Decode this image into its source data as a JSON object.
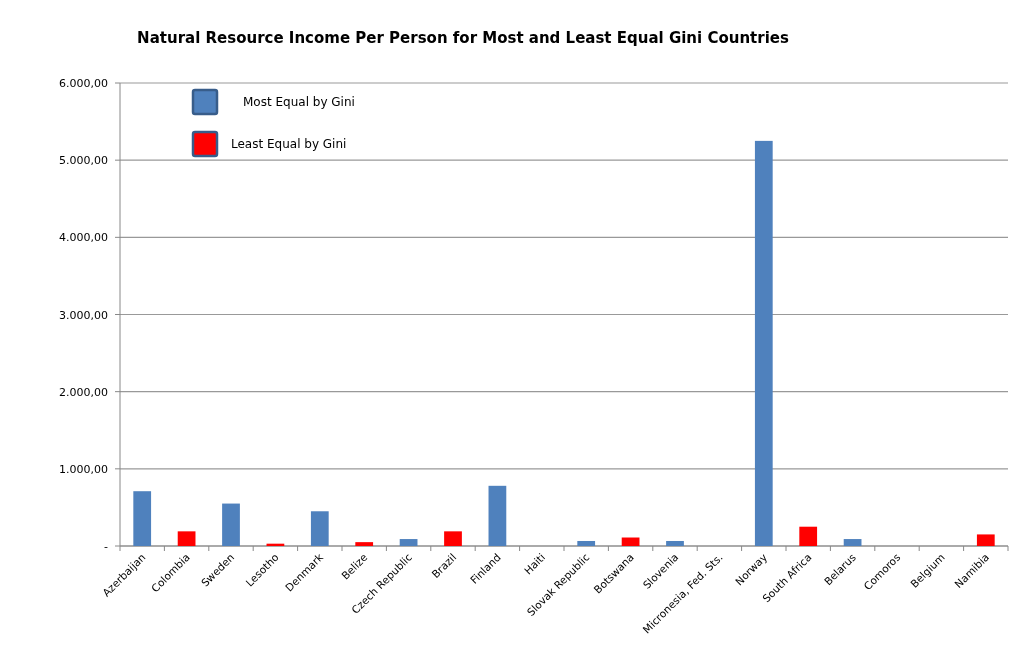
{
  "chart_data": {
    "type": "bar",
    "title": "Natural Resource Income Per Person for Most and Least Equal Gini Countries",
    "categories": [
      "Azerbaijan",
      "Colombia",
      "Sweden",
      "Lesotho",
      "Denmark",
      "Belize",
      "Czech Republic",
      "Brazil",
      "Finland",
      "Haiti",
      "Slovak Republic",
      "Botswana",
      "Slovenia",
      "Micronesia, Fed. Sts.",
      "Norway",
      "South Africa",
      "Belarus",
      "Comoros",
      "Belgium",
      "Namibia"
    ],
    "series": [
      {
        "name": "Most Equal by Gini",
        "color": "#4f81bd",
        "values": [
          710,
          null,
          550,
          null,
          450,
          null,
          90,
          null,
          780,
          null,
          65,
          null,
          65,
          null,
          5250,
          null,
          90,
          null,
          0,
          null
        ]
      },
      {
        "name": "Least Equal by Gini",
        "color": "#ff0000",
        "values": [
          null,
          190,
          null,
          30,
          null,
          50,
          null,
          190,
          null,
          0,
          null,
          110,
          null,
          0,
          null,
          250,
          null,
          0,
          null,
          150
        ]
      }
    ],
    "ylim": [
      0,
      6000
    ],
    "yticks": [
      {
        "value": 0,
        "label": "-"
      },
      {
        "value": 1000,
        "label": "1.000,00"
      },
      {
        "value": 2000,
        "label": "2.000,00"
      },
      {
        "value": 3000,
        "label": "3.000,00"
      },
      {
        "value": 4000,
        "label": "4.000,00"
      },
      {
        "value": 5000,
        "label": "5.000,00"
      },
      {
        "value": 6000,
        "label": "6.000,00"
      }
    ],
    "grid": "y",
    "legend": "top left"
  }
}
